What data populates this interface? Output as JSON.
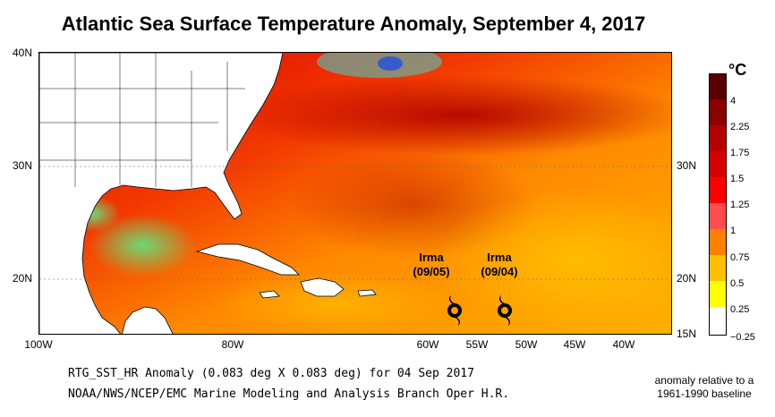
{
  "title": "Atlantic Sea Surface Temperature Anomaly, September 4, 2017",
  "colors": {
    "land": "#ffffff",
    "ocean_base": "#ff9a1f",
    "border": "#000000"
  },
  "map": {
    "lat_labels_left": [
      "40N",
      "30N",
      "20N"
    ],
    "lat_labels_right": [
      "30N",
      "20N",
      "15N"
    ],
    "lon_labels": [
      "100W",
      "80W",
      "60W",
      "55W",
      "50W",
      "45W",
      "40W"
    ],
    "extent": {
      "west": -100,
      "east": -35,
      "south": 15,
      "north": 40
    }
  },
  "storms": [
    {
      "name": "Irma",
      "date": "(09/05)",
      "lon": -56.8,
      "lat": 17.3
    },
    {
      "name": "Irma",
      "date": "(09/04)",
      "lon": -51.9,
      "lat": 17.3
    }
  ],
  "colorbar": {
    "unit": "°C",
    "ticks": [
      "4",
      "2.25",
      "1.75",
      "1.5",
      "1.25",
      "1",
      "0.75",
      "0.5",
      "0.25",
      "−0.25"
    ],
    "colors": [
      "#5a0000",
      "#8b0000",
      "#b50000",
      "#d40000",
      "#ff0000",
      "#ff4d4d",
      "#ff8000",
      "#ffc000",
      "#ffff00",
      "#ffffff"
    ]
  },
  "footer": {
    "line1": "RTG_SST_HR Anomaly (0.083 deg X 0.083 deg) for 04 Sep 2017",
    "line2": "NOAA/NWS/NCEP/EMC Marine Modeling and Analysis Branch Oper H.R.",
    "note_line1": "anomaly relative to a",
    "note_line2": "1961-1990 baseline"
  }
}
